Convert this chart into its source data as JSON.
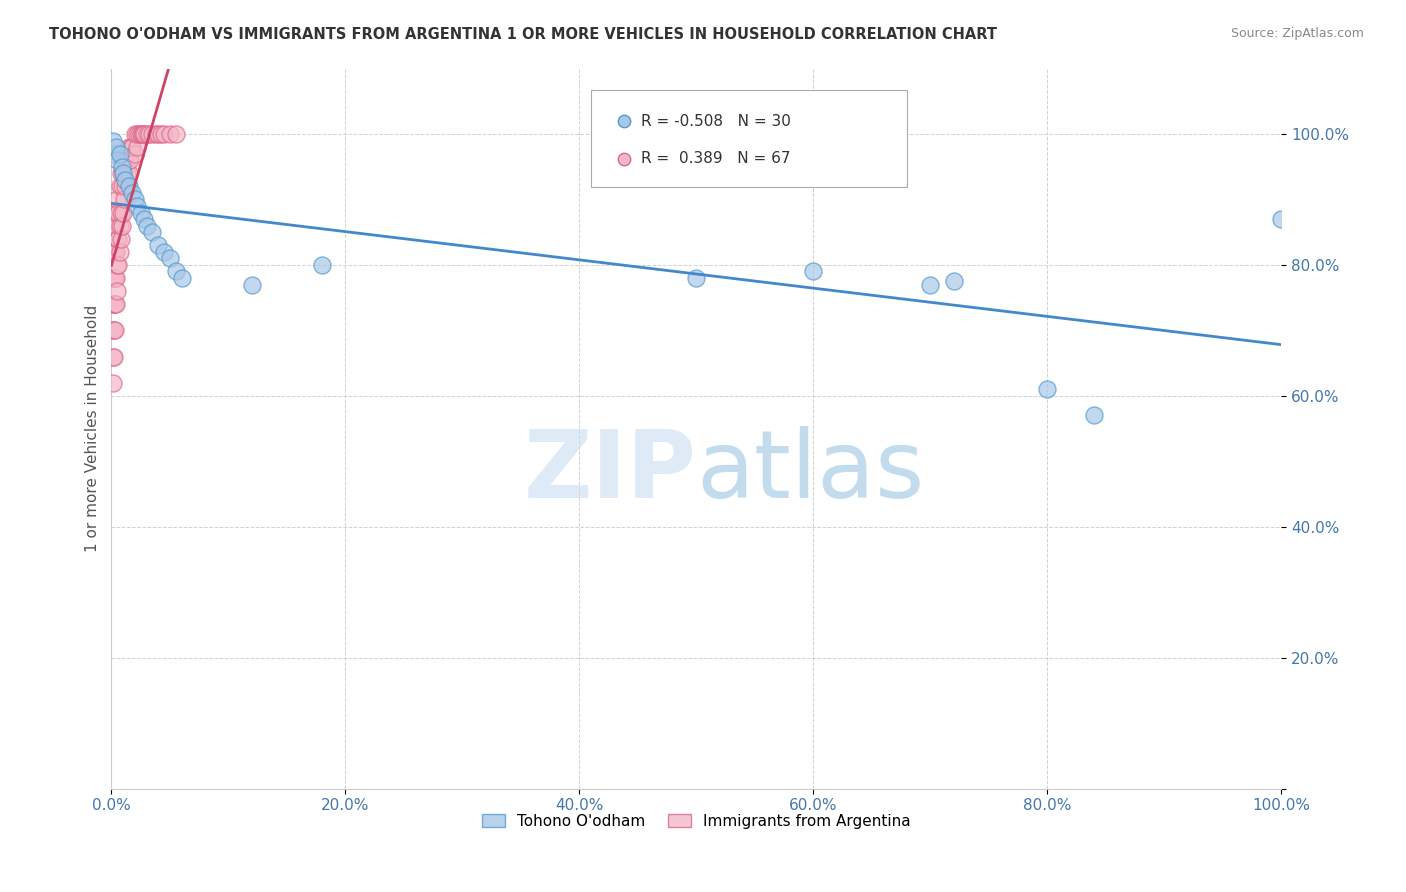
{
  "title": "TOHONO O'ODHAM VS IMMIGRANTS FROM ARGENTINA 1 OR MORE VEHICLES IN HOUSEHOLD CORRELATION CHART",
  "source": "Source: ZipAtlas.com",
  "ylabel": "1 or more Vehicles in Household",
  "watermark_zip": "ZIP",
  "watermark_atlas": "atlas",
  "blue_label": "Tohono O'odham",
  "pink_label": "Immigrants from Argentina",
  "blue_R": -0.508,
  "blue_N": 30,
  "pink_R": 0.389,
  "pink_N": 67,
  "blue_color": "#a8c8e8",
  "pink_color": "#f4b8c8",
  "blue_edge_color": "#5599cc",
  "pink_edge_color": "#dd6688",
  "blue_line_color": "#4488cc",
  "pink_line_color": "#cc4466",
  "background_color": "#ffffff",
  "grid_color": "#cccccc",
  "blue_scatter_x": [
    0.001,
    0.003,
    0.004,
    0.005,
    0.007,
    0.009,
    0.01,
    0.012,
    0.015,
    0.018,
    0.02,
    0.022,
    0.025,
    0.028,
    0.03,
    0.035,
    0.04,
    0.045,
    0.05,
    0.055,
    0.06,
    0.12,
    0.18,
    0.5,
    0.6,
    0.7,
    0.72,
    0.8,
    0.84,
    1.0
  ],
  "blue_scatter_y": [
    0.99,
    0.97,
    0.98,
    0.96,
    0.97,
    0.95,
    0.94,
    0.93,
    0.92,
    0.91,
    0.9,
    0.89,
    0.88,
    0.87,
    0.86,
    0.85,
    0.83,
    0.82,
    0.81,
    0.79,
    0.78,
    0.77,
    0.8,
    0.78,
    0.79,
    0.77,
    0.775,
    0.61,
    0.57,
    0.87
  ],
  "pink_scatter_x": [
    0.001,
    0.001,
    0.001,
    0.001,
    0.001,
    0.001,
    0.002,
    0.002,
    0.002,
    0.002,
    0.002,
    0.002,
    0.003,
    0.003,
    0.003,
    0.003,
    0.003,
    0.004,
    0.004,
    0.004,
    0.004,
    0.005,
    0.005,
    0.005,
    0.005,
    0.006,
    0.006,
    0.006,
    0.007,
    0.007,
    0.007,
    0.008,
    0.008,
    0.008,
    0.009,
    0.009,
    0.01,
    0.01,
    0.011,
    0.011,
    0.012,
    0.012,
    0.013,
    0.014,
    0.015,
    0.015,
    0.016,
    0.017,
    0.018,
    0.02,
    0.02,
    0.022,
    0.022,
    0.024,
    0.025,
    0.026,
    0.027,
    0.028,
    0.03,
    0.032,
    0.035,
    0.038,
    0.04,
    0.042,
    0.045,
    0.05,
    0.055
  ],
  "pink_scatter_y": [
    0.62,
    0.66,
    0.7,
    0.74,
    0.78,
    0.82,
    0.66,
    0.7,
    0.74,
    0.78,
    0.82,
    0.86,
    0.7,
    0.74,
    0.78,
    0.82,
    0.86,
    0.74,
    0.78,
    0.82,
    0.88,
    0.76,
    0.8,
    0.84,
    0.9,
    0.8,
    0.84,
    0.88,
    0.82,
    0.86,
    0.92,
    0.84,
    0.88,
    0.94,
    0.86,
    0.92,
    0.88,
    0.94,
    0.9,
    0.96,
    0.92,
    0.96,
    0.94,
    0.96,
    0.94,
    0.98,
    0.96,
    0.98,
    0.98,
    0.97,
    1.0,
    0.98,
    1.0,
    1.0,
    1.0,
    1.0,
    1.0,
    1.0,
    1.0,
    1.0,
    1.0,
    1.0,
    1.0,
    1.0,
    1.0,
    1.0,
    1.0
  ],
  "xlim": [
    0.0,
    1.0
  ],
  "ylim": [
    0.0,
    1.1
  ],
  "xticks": [
    0.0,
    0.2,
    0.4,
    0.6,
    0.8,
    1.0
  ],
  "yticks": [
    0.0,
    0.2,
    0.4,
    0.6,
    0.8,
    1.0
  ],
  "xticklabels": [
    "0.0%",
    "20.0%",
    "40.0%",
    "60.0%",
    "80.0%",
    "100.0%"
  ],
  "yticklabels": [
    "",
    "20.0%",
    "40.0%",
    "60.0%",
    "80.0%",
    "100.0%"
  ]
}
